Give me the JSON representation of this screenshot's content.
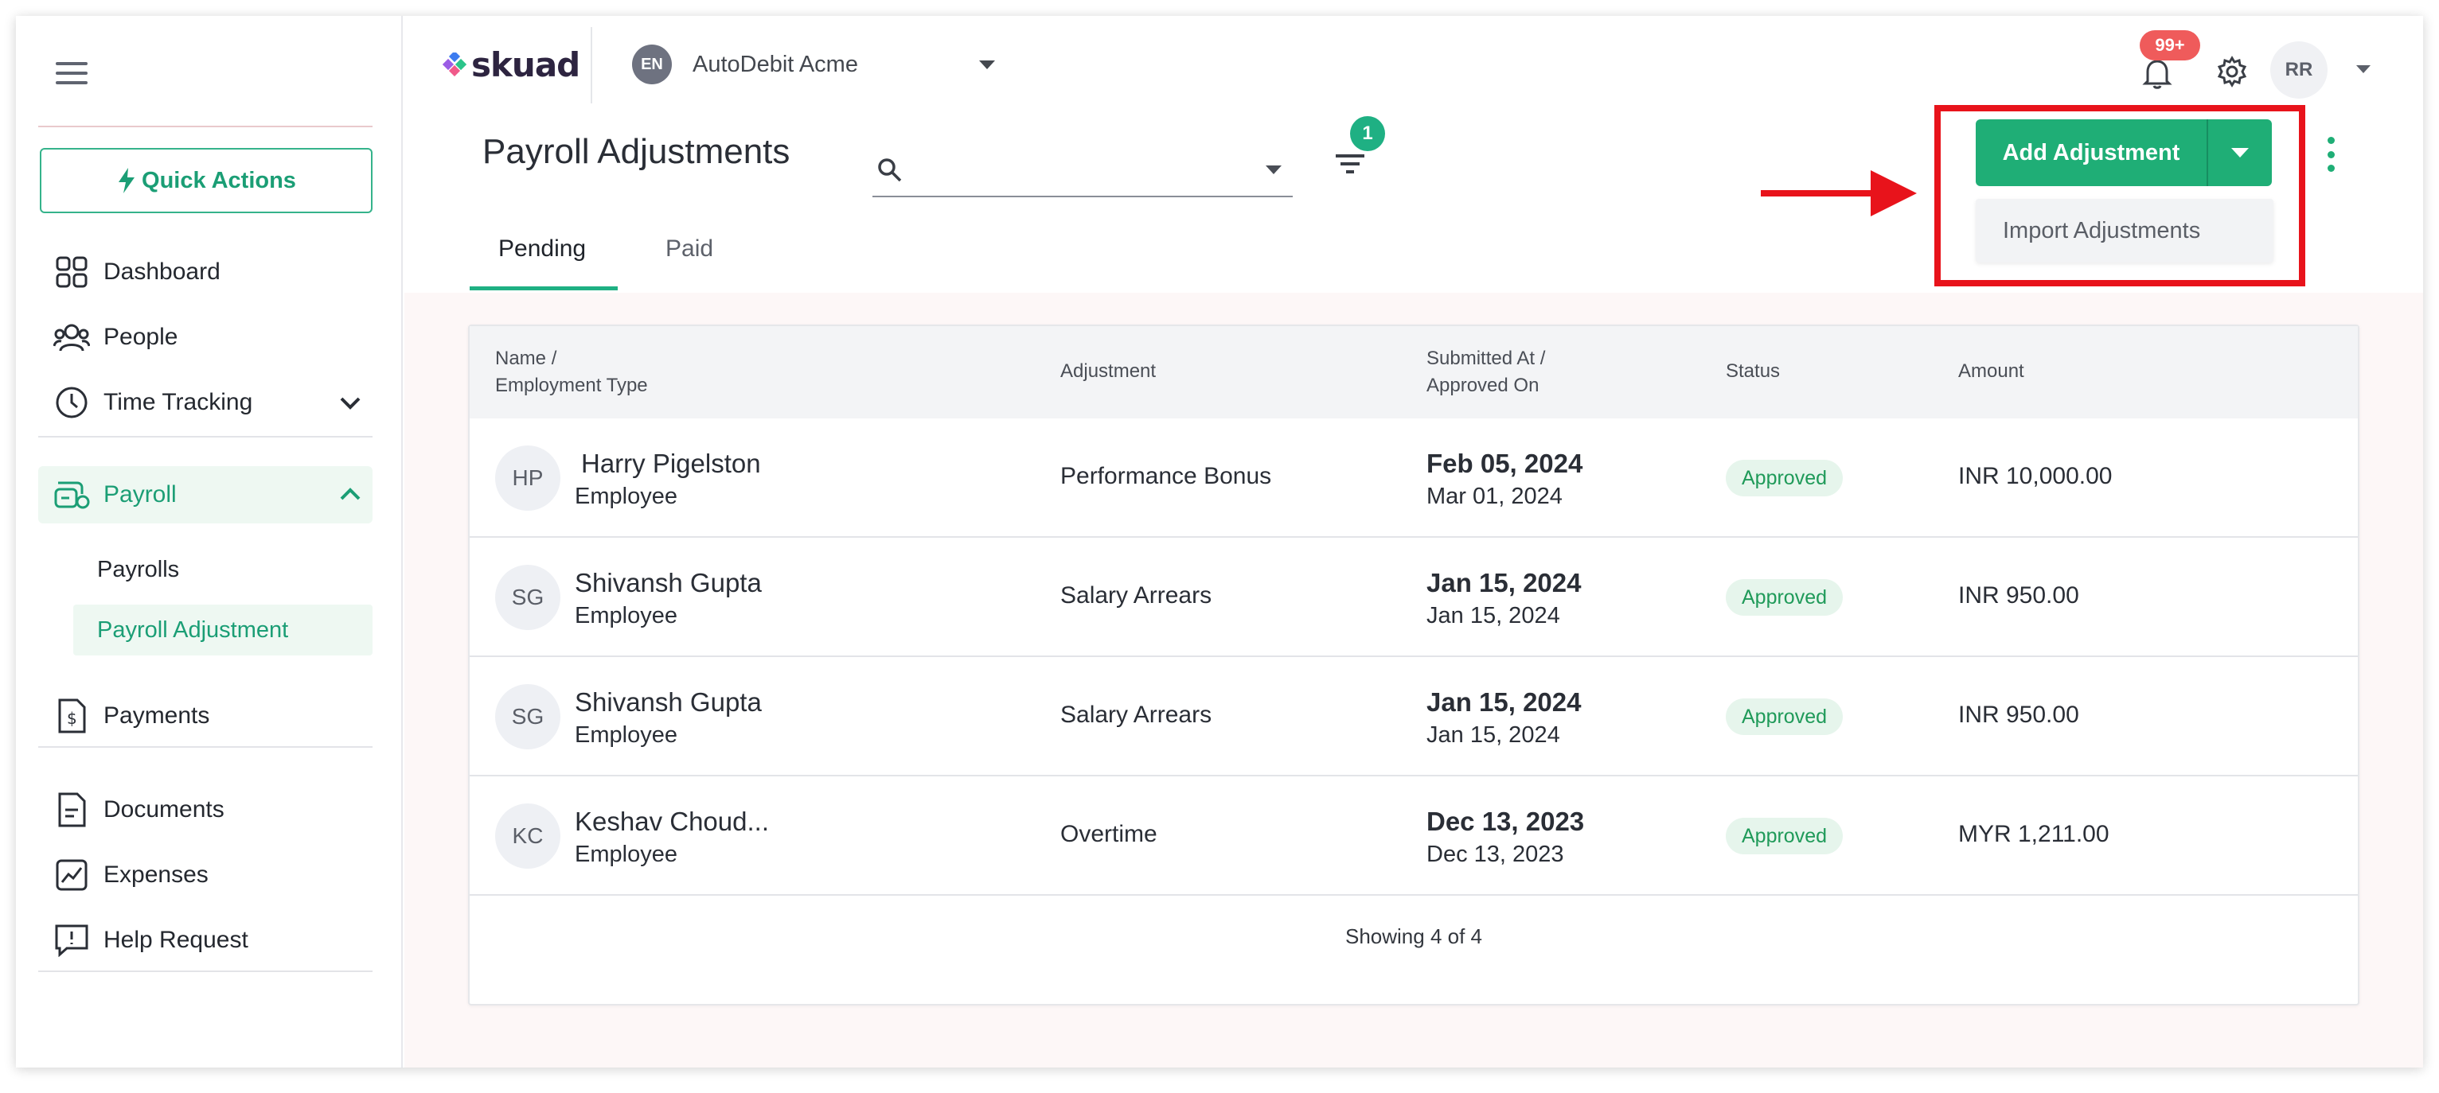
{
  "app": {
    "logo_text": "skuad",
    "org_initials": "EN",
    "org_name": "AutoDebit Acme",
    "notifications_count": "99+",
    "user_initials": "RR"
  },
  "sidebar": {
    "quick_actions": "Quick Actions",
    "items": [
      {
        "label": "Dashboard",
        "icon": "dashboard-icon"
      },
      {
        "label": "People",
        "icon": "people-icon"
      },
      {
        "label": "Time Tracking",
        "icon": "clock-icon"
      },
      {
        "label": "Payroll",
        "icon": "payroll-icon"
      },
      {
        "label": "Payments",
        "icon": "payments-icon"
      },
      {
        "label": "Documents",
        "icon": "documents-icon"
      },
      {
        "label": "Expenses",
        "icon": "expenses-icon"
      },
      {
        "label": "Help Request",
        "icon": "help-request-icon"
      }
    ],
    "payroll_sub": [
      "Payrolls",
      "Payroll Adjustment"
    ]
  },
  "page": {
    "title": "Payroll Adjustments",
    "search_value": "",
    "filter_count": "1",
    "tabs": [
      "Pending",
      "Paid"
    ],
    "add_button": "Add Adjustment",
    "dropdown_item": "Import Adjustments"
  },
  "table": {
    "headers": {
      "name_line1": "Name /",
      "name_line2": "Employment Type",
      "adjustment": "Adjustment",
      "submitted_line1": "Submitted At /",
      "submitted_line2": "Approved On",
      "status": "Status",
      "amount": "Amount"
    },
    "rows": [
      {
        "initials": "HP",
        "name": "Harry Pigelston",
        "type": "Employee",
        "adjustment": "Performance Bonus",
        "submitted": "Feb 05, 2024",
        "approved": "Mar 01, 2024",
        "status": "Approved",
        "amount": "INR 10,000.00"
      },
      {
        "initials": "SG",
        "name": "Shivansh Gupta",
        "type": "Employee",
        "adjustment": "Salary Arrears",
        "submitted": "Jan 15, 2024",
        "approved": "Jan 15, 2024",
        "status": "Approved",
        "amount": "INR 950.00"
      },
      {
        "initials": "SG",
        "name": "Shivansh Gupta",
        "type": "Employee",
        "adjustment": "Salary Arrears",
        "submitted": "Jan 15, 2024",
        "approved": "Jan 15, 2024",
        "status": "Approved",
        "amount": "INR 950.00"
      },
      {
        "initials": "KC",
        "name": "Keshav Choud...",
        "type": "Employee",
        "adjustment": "Overtime",
        "submitted": "Dec 13, 2023",
        "approved": "Dec 13, 2023",
        "status": "Approved",
        "amount": "MYR 1,211.00"
      }
    ],
    "footer": "Showing 4 of 4"
  },
  "colors": {
    "accent": "#1fae76",
    "highlight": "#e8131b",
    "status_bg": "#e6f5ec",
    "status_text": "#1f9a59",
    "notif": "#ef5b5b"
  }
}
